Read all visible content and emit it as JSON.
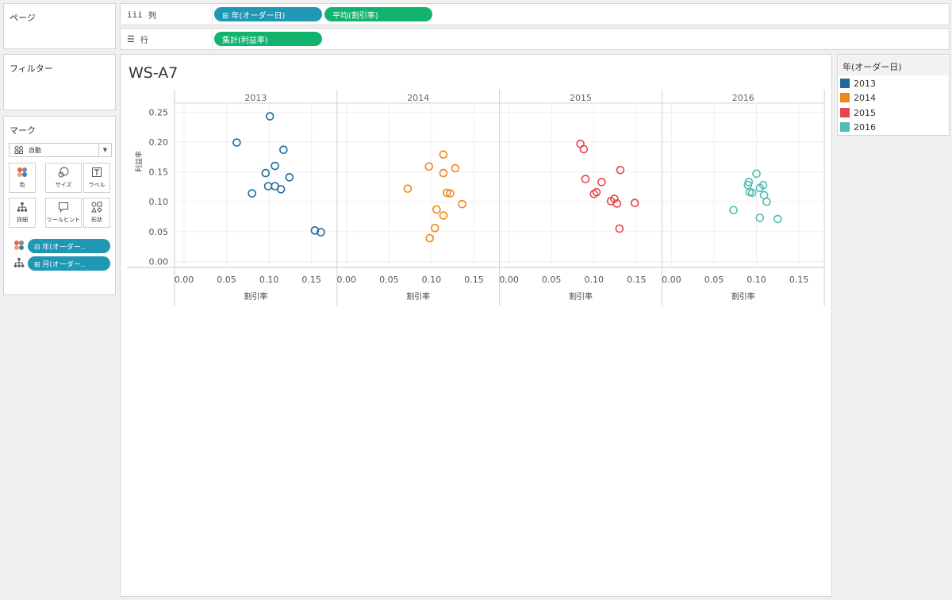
{
  "pages_panel": {
    "title": "ページ"
  },
  "filters_panel": {
    "title": "フィルター"
  },
  "columns_shelf": {
    "label": "列",
    "pills": [
      {
        "text": "⊞ 年(オーダー日)",
        "color": "#1f97b5"
      },
      {
        "text": "平均(割引率)",
        "color": "#12b36d"
      }
    ]
  },
  "rows_shelf": {
    "label": "行",
    "pills": [
      {
        "text": "集計(利益率)",
        "color": "#12b36d"
      }
    ]
  },
  "marks_card": {
    "title": "マーク",
    "mark_type": "自動",
    "buttons": [
      {
        "label": "色",
        "icon": "color-icon"
      },
      {
        "label": "サイズ",
        "icon": "size-icon"
      },
      {
        "label": "ラベル",
        "icon": "label-icon"
      },
      {
        "label": "詳細",
        "icon": "detail-icon"
      },
      {
        "label": "ツールヒント",
        "icon": "tooltip-icon"
      },
      {
        "label": "形状",
        "icon": "shape-icon"
      }
    ],
    "fields": [
      {
        "text": "⊟ 年(オーダー..",
        "icon": "color-icon"
      },
      {
        "text": "⊞ 月(オーダー..",
        "icon": "detail-icon"
      }
    ]
  },
  "legend": {
    "title": "年(オーダー日)",
    "items": [
      {
        "label": "2013",
        "color": "#1f6a9a"
      },
      {
        "label": "2014",
        "color": "#f58518"
      },
      {
        "label": "2015",
        "color": "#e8444f"
      },
      {
        "label": "2016",
        "color": "#4fbdb0"
      }
    ]
  },
  "view": {
    "title": "WS-A7"
  },
  "chart_data": {
    "type": "scatter",
    "ylabel": "利益率",
    "xlabel": "割引率",
    "x_ticks": [
      "0.00",
      "0.05",
      "0.10",
      "0.15"
    ],
    "y_ticks": [
      "0.00",
      "0.05",
      "0.10",
      "0.15",
      "0.20",
      "0.25"
    ],
    "xlim": [
      0,
      0.18
    ],
    "ylim": [
      -0.01,
      0.265
    ],
    "grid": true,
    "panels": [
      {
        "name": "2013",
        "color": "#1f6a9a",
        "points": [
          [
            0.101,
            0.243
          ],
          [
            0.062,
            0.199
          ],
          [
            0.117,
            0.187
          ],
          [
            0.107,
            0.16
          ],
          [
            0.096,
            0.148
          ],
          [
            0.124,
            0.141
          ],
          [
            0.099,
            0.126
          ],
          [
            0.107,
            0.126
          ],
          [
            0.114,
            0.121
          ],
          [
            0.08,
            0.114
          ],
          [
            0.154,
            0.052
          ],
          [
            0.161,
            0.049
          ]
        ]
      },
      {
        "name": "2014",
        "color": "#f58518",
        "points": [
          [
            0.114,
            0.179
          ],
          [
            0.097,
            0.159
          ],
          [
            0.128,
            0.156
          ],
          [
            0.114,
            0.148
          ],
          [
            0.072,
            0.122
          ],
          [
            0.118,
            0.115
          ],
          [
            0.122,
            0.114
          ],
          [
            0.136,
            0.096
          ],
          [
            0.106,
            0.087
          ],
          [
            0.114,
            0.077
          ],
          [
            0.104,
            0.056
          ],
          [
            0.098,
            0.039
          ]
        ]
      },
      {
        "name": "2015",
        "color": "#e8444f",
        "points": [
          [
            0.084,
            0.197
          ],
          [
            0.088,
            0.188
          ],
          [
            0.131,
            0.153
          ],
          [
            0.09,
            0.138
          ],
          [
            0.109,
            0.133
          ],
          [
            0.103,
            0.116
          ],
          [
            0.1,
            0.113
          ],
          [
            0.124,
            0.105
          ],
          [
            0.12,
            0.101
          ],
          [
            0.127,
            0.097
          ],
          [
            0.148,
            0.098
          ],
          [
            0.13,
            0.055
          ]
        ]
      },
      {
        "name": "2016",
        "color": "#4fbdb0",
        "points": [
          [
            0.1,
            0.147
          ],
          [
            0.108,
            0.128
          ],
          [
            0.091,
            0.133
          ],
          [
            0.09,
            0.128
          ],
          [
            0.104,
            0.123
          ],
          [
            0.092,
            0.116
          ],
          [
            0.095,
            0.115
          ],
          [
            0.109,
            0.111
          ],
          [
            0.112,
            0.1
          ],
          [
            0.073,
            0.086
          ],
          [
            0.104,
            0.073
          ],
          [
            0.125,
            0.071
          ]
        ]
      }
    ]
  }
}
